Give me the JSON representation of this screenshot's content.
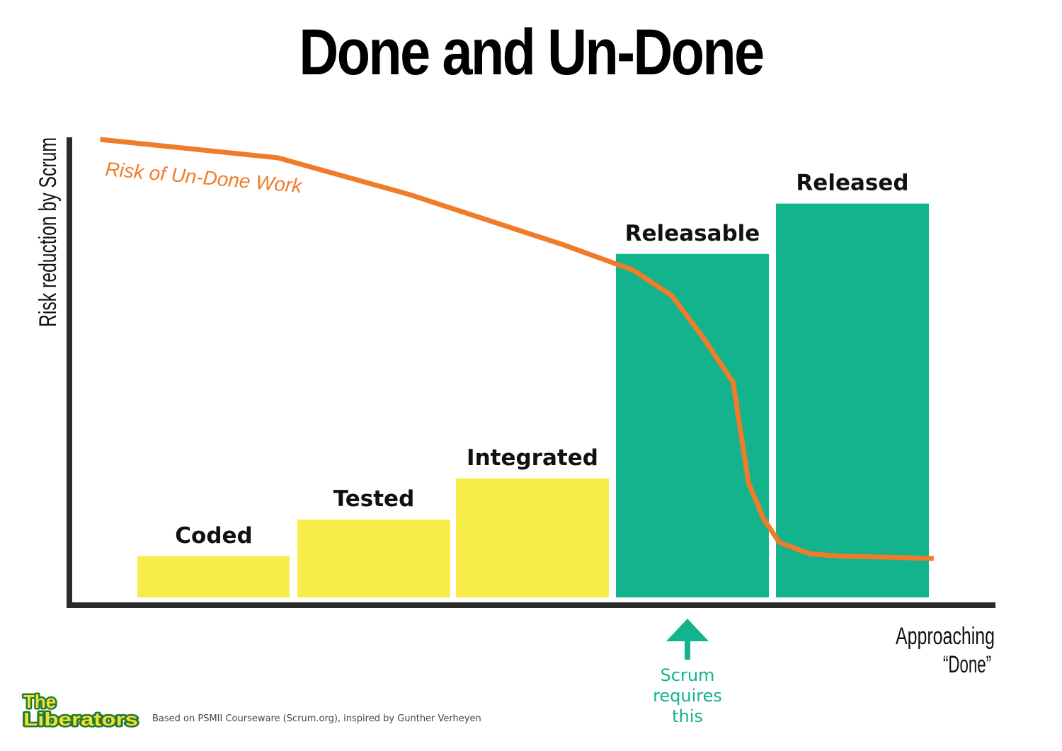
{
  "title": "Done and Un-Done",
  "colors": {
    "early": "#f8ec4a",
    "done": "#13b38e",
    "line": "#f07c2a",
    "axis": "#2a2a2a",
    "arrow": "#13b38e",
    "logo_fill": "#f5df2a",
    "logo_stroke": "#1f7a3a"
  },
  "chart_data": {
    "type": "bar",
    "categories": [
      "Coded",
      "Tested",
      "Integrated",
      "Releasable",
      "Released"
    ],
    "values": [
      9,
      17,
      26,
      75,
      86
    ],
    "bar_colors": [
      "#f8ec4a",
      "#f8ec4a",
      "#f8ec4a",
      "#13b38e",
      "#13b38e"
    ],
    "ylim": [
      0,
      100
    ],
    "xlim": [
      0,
      6
    ],
    "ylabel": "Risk reduction by Scrum",
    "xlabel_lines": [
      "Approaching",
      "“Done”"
    ],
    "grid": false,
    "line_series": {
      "name": "Risk of Un-Done Work",
      "x": [
        0.2,
        1.35,
        2.2,
        3.2,
        3.65,
        3.9,
        4.1,
        4.3,
        4.4,
        4.5,
        4.6,
        4.8,
        5.0,
        5.3,
        5.6
      ],
      "y": [
        100,
        96,
        88,
        77,
        71.5,
        66,
        57,
        47,
        25,
        17,
        12,
        9.5,
        9,
        8.8,
        8.5
      ]
    },
    "annotation": {
      "text_lines": [
        "Scrum",
        "requires",
        "this"
      ],
      "x": 4.0
    }
  },
  "footer": {
    "logo_line1": "The",
    "logo_line2": "Liberators",
    "credit": "Based on PSMII Courseware (Scrum.org), inspired by Gunther Verheyen"
  }
}
